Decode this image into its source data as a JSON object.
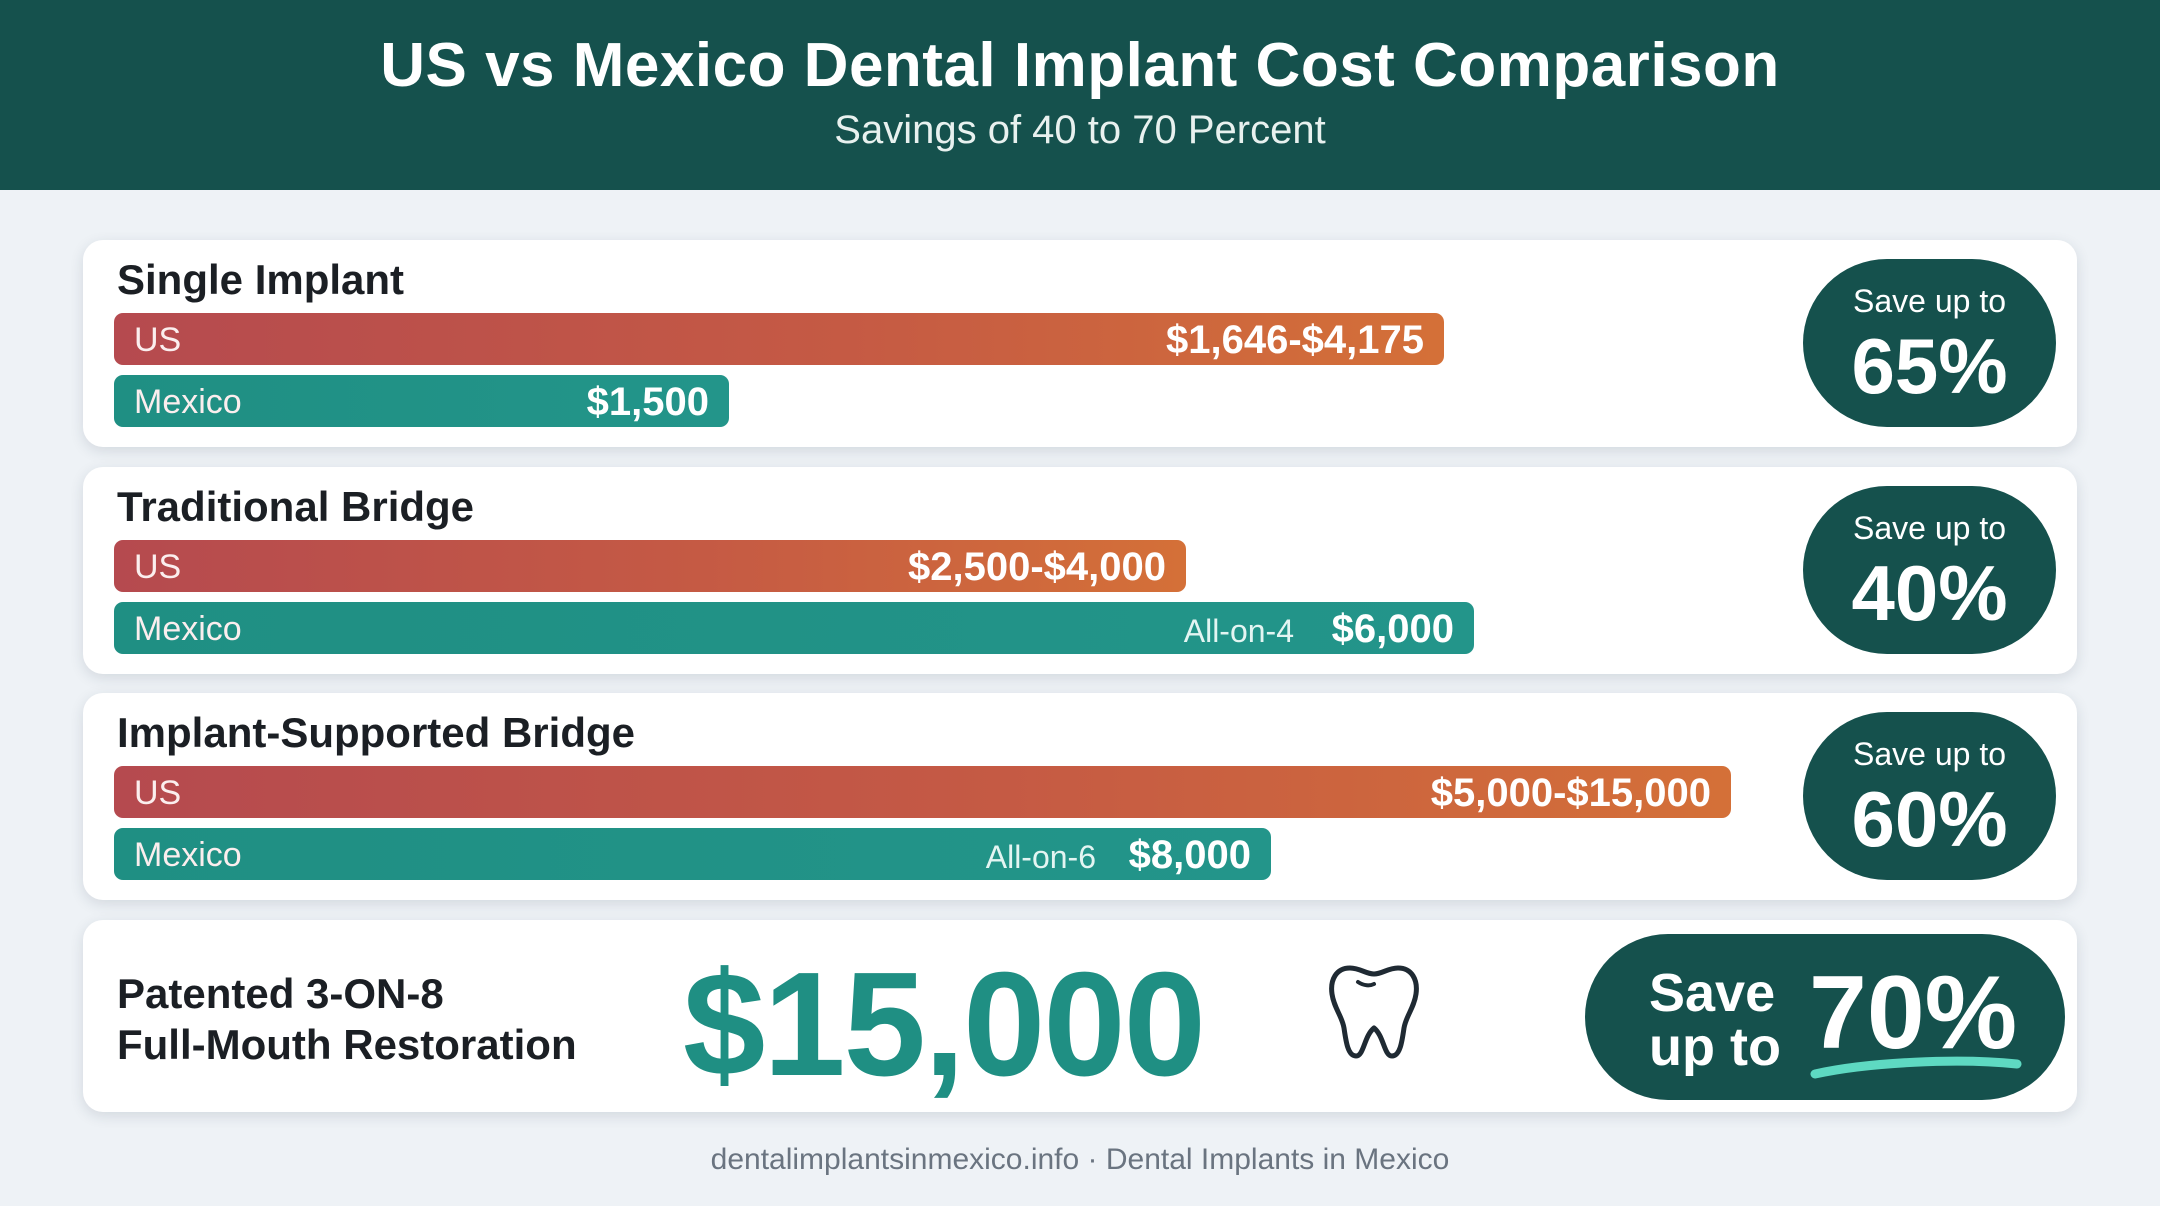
{
  "header": {
    "title": "US vs Mexico Dental Implant Cost Comparison",
    "subtitle": "Savings of 40 to 70 Percent"
  },
  "colors": {
    "header_bg": "#15514d",
    "us_bar": "#c55a44",
    "mexico_bar": "#1f8f83",
    "accent_teal": "#1f8f83",
    "swoosh": "#5ed9c2"
  },
  "labels": {
    "us": "US",
    "mexico": "Mexico",
    "save_up_to": "Save up to"
  },
  "chart_data": {
    "type": "bar",
    "orientation": "horizontal",
    "categories": [
      "Single Implant",
      "Traditional Bridge",
      "Implant-Supported Bridge"
    ],
    "series": [
      {
        "name": "US",
        "values": [
          4175,
          4000,
          15000
        ],
        "value_labels": [
          "$1,646-$4,175",
          "$2,500-$4,000",
          "$5,000-$15,000"
        ]
      },
      {
        "name": "Mexico",
        "values": [
          1500,
          6000,
          8000
        ],
        "value_labels": [
          "$1,500",
          "$6,000",
          "$8,000"
        ],
        "notes": [
          "",
          "All-on-4",
          "All-on-6"
        ]
      }
    ],
    "savings": [
      "65%",
      "40%",
      "60%"
    ],
    "xlim": [
      0,
      16000
    ],
    "grid": false,
    "legend": "none"
  },
  "highlight": {
    "label_line1": "Patented 3-ON-8",
    "label_line2": "Full-Mouth Restoration",
    "price": "$15,000",
    "icon": "tooth-icon",
    "save_line1": "Save",
    "save_line2": "up to",
    "save_pct": "70%"
  },
  "footer": "dentalimplantsinmexico.info · Dental Implants in Mexico"
}
